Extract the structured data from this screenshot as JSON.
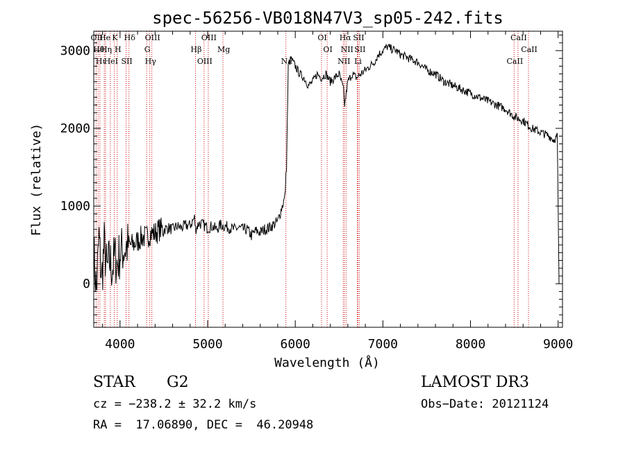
{
  "chart_data": {
    "type": "line",
    "title": "spec-56256-VB018N47V3_sp05-242.fits",
    "xlabel": "Wavelength (Å)",
    "ylabel": "Flux (relative)",
    "xlim": [
      3700,
      9050
    ],
    "ylim": [
      -560,
      3250
    ],
    "xticks": [
      4000,
      5000,
      6000,
      7000,
      8000,
      9000
    ],
    "yticks": [
      0,
      1000,
      2000,
      3000
    ],
    "x_tick_labels": [
      "4000",
      "5000",
      "6000",
      "7000",
      "8000",
      "9000"
    ],
    "y_tick_labels": [
      "0",
      "1000",
      "2000",
      "3000"
    ],
    "grid": false,
    "line_color": "#000000",
    "line_marker_color": "#cc0000",
    "series": [
      {
        "x": [
          3700,
          3730,
          3760,
          3790,
          3820,
          3850,
          3880,
          3910,
          3940,
          3970,
          4000,
          4050,
          4100,
          4150,
          4200,
          4250,
          4300,
          4350,
          4400,
          4450,
          4500,
          4550,
          4600,
          4650,
          4700,
          4750,
          4800,
          4850,
          4861,
          4900,
          4950,
          5000,
          5050,
          5100,
          5150,
          5200,
          5250,
          5300,
          5350,
          5400,
          5450,
          5500,
          5550,
          5600,
          5650,
          5700,
          5750,
          5800,
          5850,
          5880,
          5900,
          5920,
          5950,
          6000,
          6050,
          6100,
          6150,
          6200,
          6250,
          6300,
          6350,
          6400,
          6450,
          6500,
          6550,
          6563,
          6600,
          6650,
          6700,
          6750,
          6800,
          6850,
          6900,
          6950,
          7000,
          7050,
          7100,
          7150,
          7200,
          7300,
          7400,
          7500,
          7600,
          7700,
          7800,
          7900,
          8000,
          8100,
          8200,
          8300,
          8400,
          8500,
          8600,
          8700,
          8800,
          8900,
          8950,
          8990,
          9000,
          9010
        ],
        "y": [
          400,
          -100,
          600,
          50,
          500,
          150,
          300,
          200,
          350,
          250,
          400,
          450,
          500,
          500,
          550,
          600,
          600,
          650,
          650,
          700,
          700,
          720,
          700,
          740,
          720,
          750,
          750,
          850,
          700,
          780,
          760,
          720,
          740,
          700,
          760,
          740,
          720,
          700,
          720,
          700,
          700,
          620,
          680,
          660,
          700,
          720,
          760,
          800,
          1000,
          1100,
          1500,
          2800,
          2900,
          2800,
          2700,
          2650,
          2550,
          2600,
          2700,
          2650,
          2700,
          2600,
          2650,
          2700,
          2500,
          2300,
          2600,
          2700,
          2650,
          2700,
          2750,
          2800,
          2850,
          2950,
          3000,
          3050,
          3020,
          3000,
          2950,
          2900,
          2850,
          2750,
          2700,
          2600,
          2550,
          2500,
          2450,
          2400,
          2350,
          2300,
          2250,
          2150,
          2100,
          2000,
          1950,
          1900,
          1850,
          1900,
          1000,
          0
        ]
      }
    ],
    "lines": [
      {
        "wl": 3727,
        "label": "OII"
      },
      {
        "wl": 3750,
        "label": "Hθ"
      },
      {
        "wl": 3770,
        "label": "Hι"
      },
      {
        "wl": 3820,
        "label": "He"
      },
      {
        "wl": 3835,
        "label": "Hη"
      },
      {
        "wl": 3889,
        "label": "HeI"
      },
      {
        "wl": 3934,
        "label": "K"
      },
      {
        "wl": 3968,
        "label": "H"
      },
      {
        "wl": 4069,
        "label": "SII"
      },
      {
        "wl": 4102,
        "label": "Hδ"
      },
      {
        "wl": 4304,
        "label": "G"
      },
      {
        "wl": 4340,
        "label": "Hγ"
      },
      {
        "wl": 4363,
        "label": "OIII"
      },
      {
        "wl": 4861,
        "label": "Hβ"
      },
      {
        "wl": 4959,
        "label": "OIII"
      },
      {
        "wl": 5007,
        "label": "OIII"
      },
      {
        "wl": 5175,
        "label": "Mg"
      },
      {
        "wl": 5893,
        "label": "Na"
      },
      {
        "wl": 6300,
        "label": "OI"
      },
      {
        "wl": 6364,
        "label": "OI"
      },
      {
        "wl": 6548,
        "label": "NII"
      },
      {
        "wl": 6563,
        "label": "Hα"
      },
      {
        "wl": 6583,
        "label": "NII"
      },
      {
        "wl": 6708,
        "label": "Li"
      },
      {
        "wl": 6716,
        "label": "SII"
      },
      {
        "wl": 6731,
        "label": "SII"
      },
      {
        "wl": 8498,
        "label": "CaII"
      },
      {
        "wl": 8542,
        "label": "CaII"
      },
      {
        "wl": 8662,
        "label": "CaII"
      }
    ]
  },
  "info": {
    "class_label": "STAR",
    "subclass": "G2",
    "cz": "cz = −238.2 ± 32.2 km/s",
    "coords": "RA =  17.06890, DEC =  46.20948",
    "survey": "LAMOST DR3",
    "obsdate": "Obs−Date: 20121124"
  }
}
